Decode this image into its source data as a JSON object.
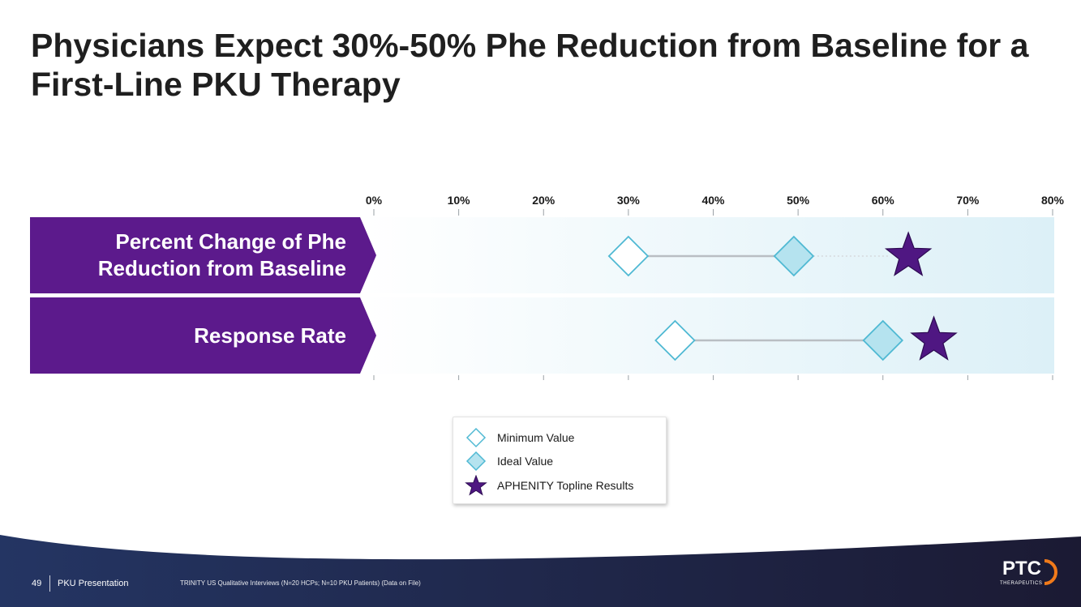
{
  "slide": {
    "title": "Physicians Expect 30%-50% Phe Reduction from Baseline for a First-Line PKU Therapy",
    "page_number": "49",
    "presentation_name": "PKU Presentation",
    "source": "TRINITY US Qualitative Interviews (N=20 HCPs; N=10 PKU Patients) (Data on File)"
  },
  "logo": {
    "text": "PTC",
    "subtext": "THERAPEUTICS"
  },
  "colors": {
    "purple": "#5c1a8c",
    "marker_outline": "#4fb9d3",
    "ideal_fill": "#b5e3ef",
    "star_fill": "#4f1782",
    "range_line": "#b9bec3",
    "footer_bg": "#1c2a4f"
  },
  "chart_data": {
    "type": "dot-range",
    "x_axis": {
      "min": 0,
      "max": 80,
      "ticks": [
        0,
        10,
        20,
        30,
        40,
        50,
        60,
        70,
        80
      ],
      "tick_labels": [
        "0%",
        "10%",
        "20%",
        "30%",
        "40%",
        "50%",
        "60%",
        "70%",
        "80%"
      ]
    },
    "categories": [
      "Percent Change of Phe Reduction from Baseline",
      "Response Rate"
    ],
    "series": [
      {
        "name": "Minimum Value",
        "marker": "diamond-outline",
        "values": [
          30,
          35.5
        ]
      },
      {
        "name": "Ideal Value",
        "marker": "diamond-filled",
        "values": [
          49.5,
          60
        ]
      },
      {
        "name": "APHENITY Topline Results",
        "marker": "star",
        "values": [
          63,
          66
        ]
      }
    ],
    "legend_position": "bottom-center"
  }
}
